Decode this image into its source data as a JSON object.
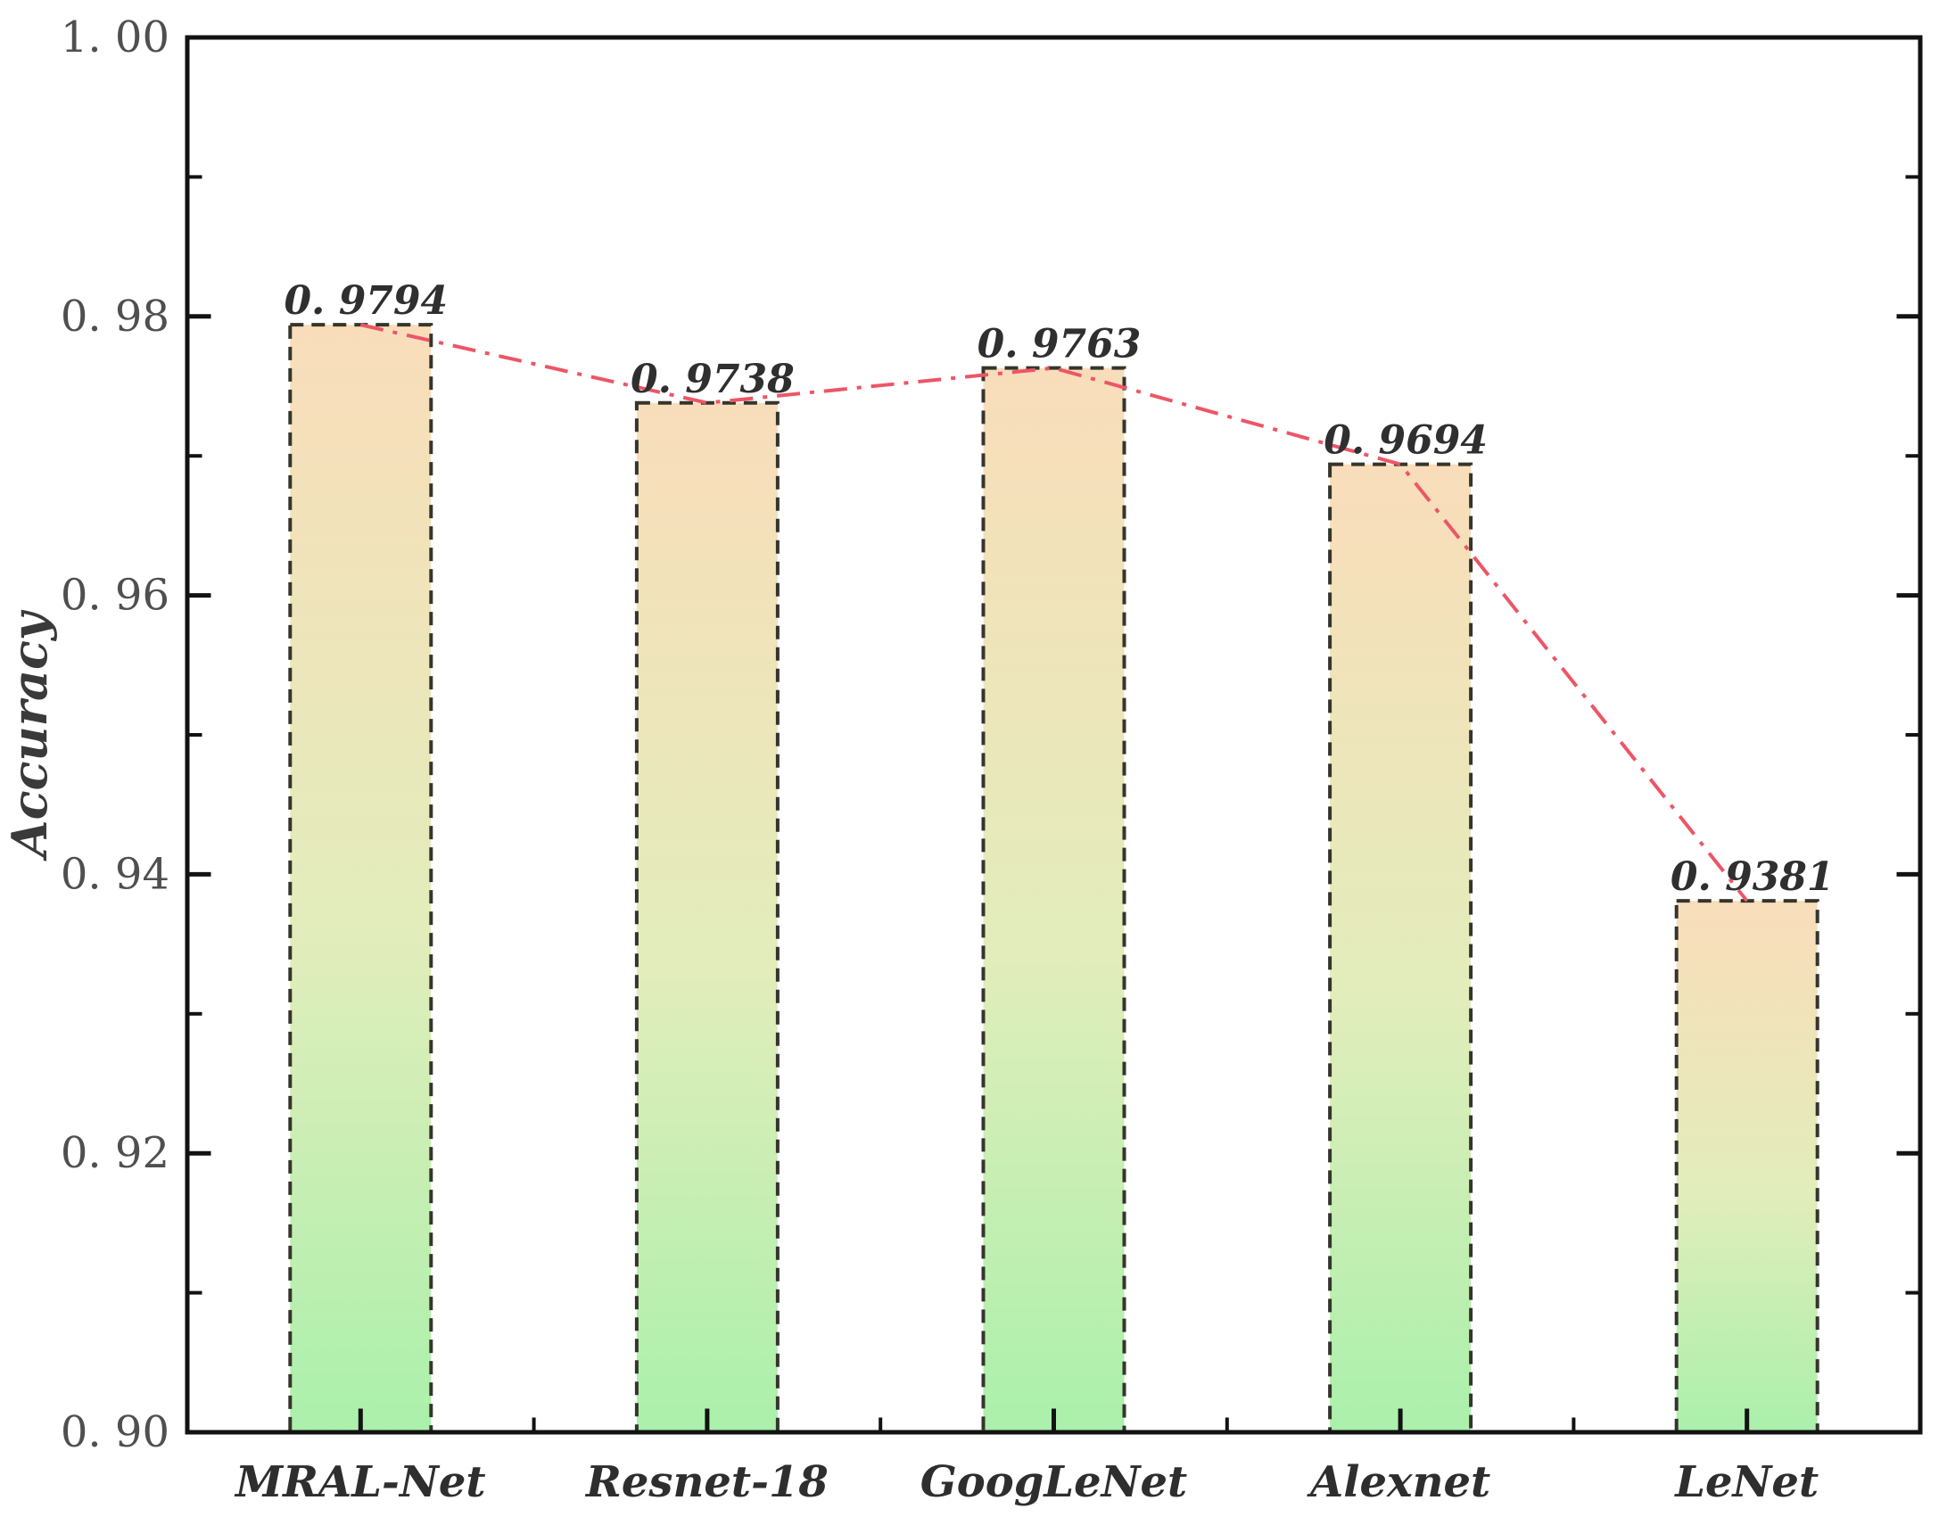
{
  "figure": {
    "background": "#ffffff",
    "colors": {
      "axis": "#121212",
      "tick": "#121212",
      "y_tick_label": "#4f4f4f",
      "x_tick_label": "#2e2e2e",
      "value_label": "#2f2f2f",
      "axis_title": "#3a3a3a",
      "bar_top": "#f9ddba",
      "bar_mid": "#e2edbb",
      "bar_bottom": "#aaf0ab",
      "bar_border": "#35352b",
      "line": "#ec5666"
    }
  },
  "chart_data": {
    "type": "bar",
    "title": "",
    "xlabel": "",
    "ylabel": "Accuracy",
    "categories": [
      "MRAL-Net",
      "Resnet-18",
      "GoogLeNet",
      "Alexnet",
      "LeNet"
    ],
    "values": [
      0.9794,
      0.9738,
      0.9763,
      0.9694,
      0.9381
    ],
    "value_labels": [
      "0. 9794",
      "0. 9738",
      "0. 9763",
      "0. 9694",
      "0. 9381"
    ],
    "ylim": [
      0.9,
      1.0
    ],
    "y_major_ticks": [
      0.9,
      0.92,
      0.94,
      0.96,
      0.98,
      1.0
    ],
    "y_tick_labels": [
      "0. 90",
      "0. 92",
      "0. 94",
      "0. 96",
      "0. 98",
      "1. 00"
    ],
    "y_minor_ticks": [
      0.91,
      0.93,
      0.95,
      0.97,
      0.99
    ],
    "grid": false,
    "legend_position": "none",
    "overlay_line": {
      "type": "line",
      "style": "dash-dot",
      "color": "#ec5666",
      "x": [
        "MRAL-Net",
        "Resnet-18",
        "GoogLeNet",
        "Alexnet",
        "LeNet"
      ],
      "y": [
        0.9794,
        0.9738,
        0.9763,
        0.9694,
        0.9381
      ]
    }
  }
}
